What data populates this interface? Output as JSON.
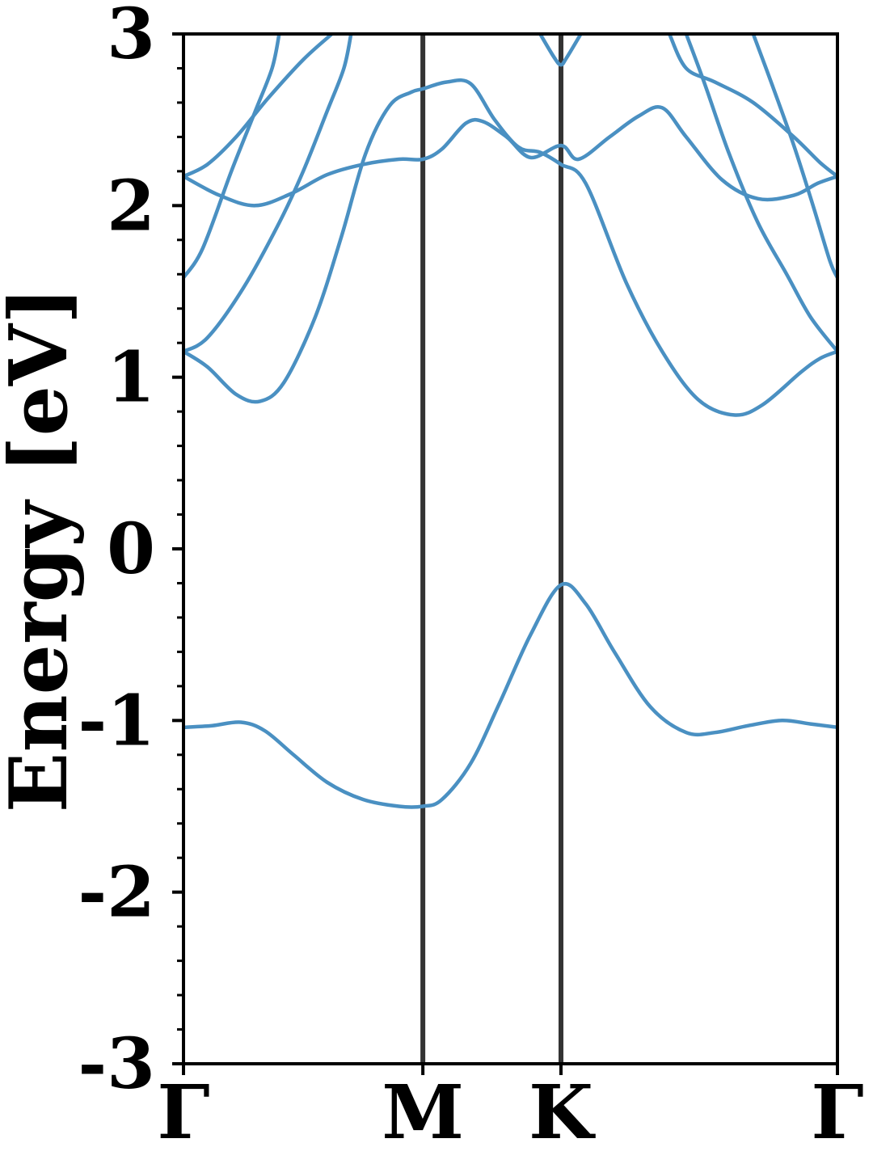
{
  "chart_data": {
    "type": "line",
    "title": "",
    "xlabel": "",
    "ylabel": "Energy [eV]",
    "ylim": [
      -3,
      3
    ],
    "yticks": [
      -3,
      -2,
      -1,
      0,
      1,
      2,
      3
    ],
    "ytick_labels": [
      "-3",
      "-2",
      "-1",
      "0",
      "1",
      "2",
      "3"
    ],
    "x_unit_note": "k-path coordinate, Γ=0, M=1, K=1.577, Γ=2.732",
    "xlim": [
      0,
      2.732
    ],
    "kpoints": [
      {
        "label": "Γ",
        "x": 0
      },
      {
        "label": "M",
        "x": 1.0
      },
      {
        "label": "K",
        "x": 1.577
      },
      {
        "label": "Γ",
        "x": 2.732
      }
    ],
    "grid": false,
    "line_color": "#4a90c2",
    "vline_color": "#333333",
    "series": [
      {
        "points": [
          [
            0,
            -1.04
          ],
          [
            0.12,
            -1.03
          ],
          [
            0.24,
            -1.01
          ],
          [
            0.34,
            -1.06
          ],
          [
            0.46,
            -1.2
          ],
          [
            0.6,
            -1.36
          ],
          [
            0.75,
            -1.46
          ],
          [
            0.9,
            -1.5
          ],
          [
            1.0,
            -1.5
          ],
          [
            1.08,
            -1.46
          ],
          [
            1.2,
            -1.25
          ],
          [
            1.32,
            -0.9
          ],
          [
            1.45,
            -0.5
          ],
          [
            1.577,
            -0.21
          ],
          [
            1.68,
            -0.32
          ],
          [
            1.8,
            -0.6
          ],
          [
            1.95,
            -0.92
          ],
          [
            2.1,
            -1.07
          ],
          [
            2.22,
            -1.07
          ],
          [
            2.36,
            -1.03
          ],
          [
            2.5,
            -1.0
          ],
          [
            2.62,
            -1.02
          ],
          [
            2.732,
            -1.04
          ]
        ]
      },
      {
        "points": [
          [
            0,
            1.15
          ],
          [
            0.1,
            1.06
          ],
          [
            0.22,
            0.9
          ],
          [
            0.32,
            0.86
          ],
          [
            0.42,
            0.97
          ],
          [
            0.55,
            1.35
          ],
          [
            0.66,
            1.82
          ],
          [
            0.76,
            2.3
          ],
          [
            0.86,
            2.58
          ],
          [
            0.95,
            2.66
          ],
          [
            1.0,
            2.68
          ],
          [
            1.1,
            2.72
          ],
          [
            1.2,
            2.71
          ],
          [
            1.3,
            2.5
          ],
          [
            1.4,
            2.34
          ],
          [
            1.49,
            2.31
          ],
          [
            1.577,
            2.24
          ],
          [
            1.68,
            2.13
          ],
          [
            1.85,
            1.55
          ],
          [
            2.0,
            1.15
          ],
          [
            2.15,
            0.87
          ],
          [
            2.3,
            0.78
          ],
          [
            2.42,
            0.84
          ],
          [
            2.58,
            1.03
          ],
          [
            2.66,
            1.11
          ],
          [
            2.732,
            1.15
          ]
        ]
      },
      {
        "points": [
          [
            0,
            1.15
          ],
          [
            0.1,
            1.23
          ],
          [
            0.25,
            1.52
          ],
          [
            0.4,
            1.9
          ],
          [
            0.5,
            2.2
          ],
          [
            0.6,
            2.55
          ],
          [
            0.67,
            2.8
          ],
          [
            0.7,
            3.0
          ]
        ]
      },
      {
        "points": [
          [
            0,
            1.58
          ],
          [
            0.08,
            1.75
          ],
          [
            0.2,
            2.2
          ],
          [
            0.3,
            2.55
          ],
          [
            0.37,
            2.8
          ],
          [
            0.4,
            3.0
          ]
        ]
      },
      {
        "points": [
          [
            0,
            2.17
          ],
          [
            0.1,
            2.24
          ],
          [
            0.22,
            2.4
          ],
          [
            0.35,
            2.62
          ],
          [
            0.5,
            2.85
          ],
          [
            0.62,
            3.0
          ]
        ]
      },
      {
        "points": [
          [
            0,
            2.17
          ],
          [
            0.15,
            2.06
          ],
          [
            0.3,
            2.0
          ],
          [
            0.45,
            2.07
          ],
          [
            0.6,
            2.18
          ],
          [
            0.75,
            2.24
          ],
          [
            0.9,
            2.27
          ],
          [
            1.0,
            2.27
          ],
          [
            1.08,
            2.33
          ],
          [
            1.18,
            2.48
          ],
          [
            1.25,
            2.49
          ],
          [
            1.35,
            2.4
          ],
          [
            1.45,
            2.28
          ],
          [
            1.577,
            2.35
          ],
          [
            1.65,
            2.27
          ],
          [
            1.78,
            2.4
          ],
          [
            1.9,
            2.52
          ],
          [
            2.0,
            2.57
          ],
          [
            2.1,
            2.4
          ],
          [
            2.25,
            2.15
          ],
          [
            2.4,
            2.04
          ],
          [
            2.55,
            2.06
          ],
          [
            2.65,
            2.13
          ],
          [
            2.732,
            2.17
          ]
        ]
      },
      {
        "points": [
          [
            1.49,
            3.0
          ],
          [
            1.55,
            2.86
          ],
          [
            1.577,
            2.82
          ],
          [
            1.6,
            2.86
          ],
          [
            1.66,
            3.0
          ]
        ]
      },
      {
        "points": [
          [
            2.03,
            3.0
          ],
          [
            2.1,
            2.8
          ],
          [
            2.22,
            2.72
          ],
          [
            2.38,
            2.6
          ],
          [
            2.55,
            2.4
          ],
          [
            2.66,
            2.25
          ],
          [
            2.732,
            2.17
          ]
        ]
      },
      {
        "points": [
          [
            2.1,
            3.0
          ],
          [
            2.18,
            2.7
          ],
          [
            2.28,
            2.3
          ],
          [
            2.4,
            1.9
          ],
          [
            2.52,
            1.6
          ],
          [
            2.62,
            1.35
          ],
          [
            2.732,
            1.15
          ]
        ]
      },
      {
        "points": [
          [
            2.38,
            3.0
          ],
          [
            2.46,
            2.7
          ],
          [
            2.55,
            2.35
          ],
          [
            2.63,
            2.0
          ],
          [
            2.7,
            1.68
          ],
          [
            2.732,
            1.58
          ]
        ]
      }
    ]
  }
}
